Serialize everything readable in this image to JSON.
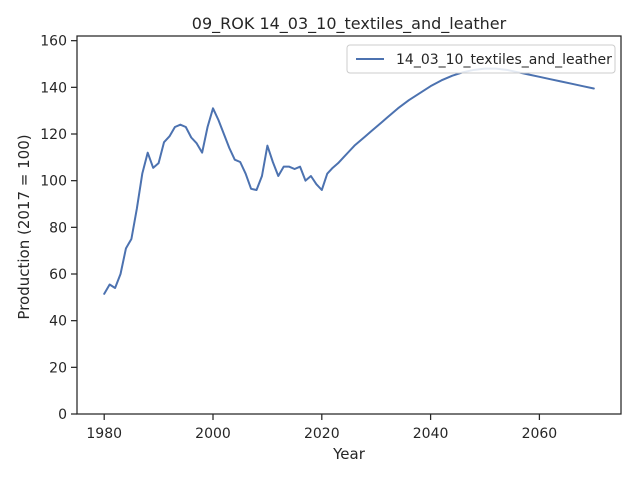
{
  "chart_data": {
    "type": "line",
    "title": "09_ROK 14_03_10_textiles_and_leather",
    "xlabel": "Year",
    "ylabel": "Production (2017 = 100)",
    "xlim": [
      1975,
      2075
    ],
    "ylim": [
      0,
      162
    ],
    "xticks": [
      1980,
      2000,
      2020,
      2040,
      2060
    ],
    "yticks": [
      0,
      20,
      40,
      60,
      80,
      100,
      120,
      140,
      160
    ],
    "grid": false,
    "legend_position": "upper right",
    "series": [
      {
        "name": "14_03_10_textiles_and_leather",
        "color": "#4c72b0",
        "x": [
          1980,
          1981,
          1982,
          1983,
          1984,
          1985,
          1986,
          1987,
          1988,
          1989,
          1990,
          1991,
          1992,
          1993,
          1994,
          1995,
          1996,
          1997,
          1998,
          1999,
          2000,
          2001,
          2002,
          2003,
          2004,
          2005,
          2006,
          2007,
          2008,
          2009,
          2010,
          2011,
          2012,
          2013,
          2014,
          2015,
          2016,
          2017,
          2018,
          2019,
          2020,
          2021,
          2022,
          2023,
          2024,
          2025,
          2026,
          2027,
          2028,
          2029,
          2030,
          2032,
          2034,
          2036,
          2038,
          2040,
          2042,
          2044,
          2046,
          2048,
          2050,
          2052,
          2054,
          2056,
          2058,
          2060,
          2062,
          2064,
          2066,
          2068,
          2070
        ],
        "y": [
          51.5,
          55.5,
          54,
          60,
          71,
          75,
          88,
          103,
          112,
          105.5,
          107.5,
          116.5,
          119,
          123,
          124,
          123,
          118.5,
          116,
          112,
          123,
          131,
          126,
          120,
          114,
          109,
          108,
          103,
          96.5,
          96,
          102,
          115,
          108,
          102,
          106,
          106,
          105,
          106,
          100,
          102,
          98.5,
          96,
          103,
          105.5,
          107.5,
          110,
          112.5,
          115,
          117,
          119,
          121,
          123,
          127,
          131,
          134.5,
          137.5,
          140.5,
          143,
          145,
          146.5,
          147.5,
          148,
          148,
          147.5,
          146.5,
          145.5,
          144.5,
          143.5,
          142.5,
          141.5,
          140.5,
          139.5
        ]
      }
    ]
  }
}
